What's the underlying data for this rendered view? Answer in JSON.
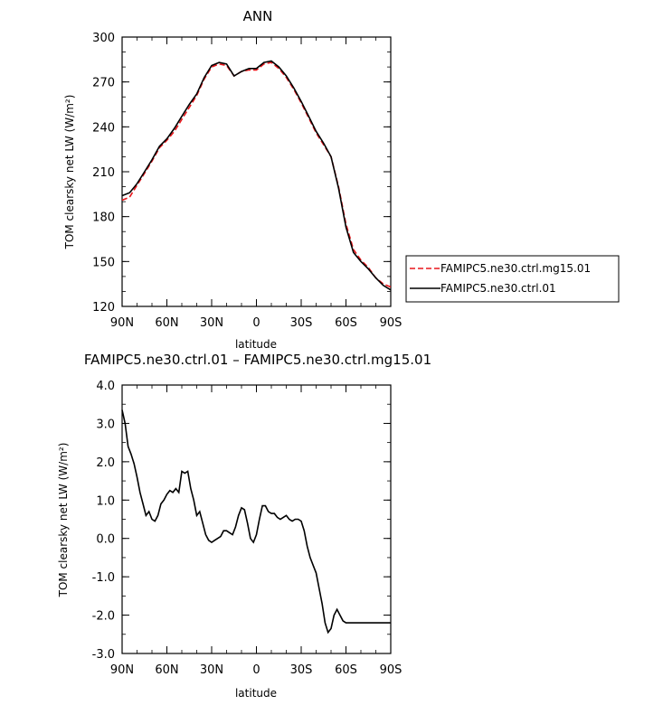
{
  "chart_data": [
    {
      "type": "line",
      "title": "ANN",
      "xlabel": "latitude",
      "ylabel": "TOM clearsky net LW (W/m²)",
      "ylim": [
        120,
        300
      ],
      "yticks": [
        "120",
        "150",
        "180",
        "210",
        "240",
        "270",
        "300"
      ],
      "xticks": [
        "90N",
        "60N",
        "30N",
        "0",
        "30S",
        "60S",
        "90S"
      ],
      "xlim": [
        90,
        -90
      ],
      "x": [
        90,
        85,
        80,
        75,
        70,
        65,
        60,
        55,
        50,
        45,
        40,
        35,
        30,
        25,
        20,
        15,
        10,
        5,
        0,
        -5,
        -10,
        -15,
        -20,
        -25,
        -30,
        -35,
        -40,
        -45,
        -50,
        -55,
        -60,
        -65,
        -70,
        -75,
        -80,
        -85,
        -90
      ],
      "series": [
        {
          "name": "FAMIPC5.ne30.ctrl.mg15.01",
          "color": "#e8161b",
          "dash": "dashed",
          "values": [
            191,
            193,
            201,
            209,
            217,
            226,
            231,
            237,
            245,
            253,
            261,
            272,
            280,
            282,
            281,
            274,
            277,
            278,
            278,
            282,
            283,
            279,
            273,
            265,
            256,
            246,
            236,
            228,
            220,
            200,
            175,
            158,
            151,
            146,
            139,
            135,
            133
          ]
        },
        {
          "name": "FAMIPC5.ne30.ctrl.01",
          "color": "#000000",
          "dash": "solid",
          "values": [
            194,
            196,
            202,
            210,
            218,
            227,
            232,
            239,
            247,
            255,
            262,
            273,
            281,
            283,
            282,
            274,
            277,
            279,
            279,
            283,
            284,
            280,
            274,
            266,
            257,
            247,
            237,
            229,
            220,
            199,
            173,
            156,
            150,
            145,
            139,
            134,
            131
          ]
        }
      ],
      "legend": "right"
    },
    {
      "type": "line",
      "title": "FAMIPC5.ne30.ctrl.01 – FAMIPC5.ne30.ctrl.mg15.01",
      "xlabel": "latitude",
      "ylabel": "TOM clearsky net LW (W/m²)",
      "ylim": [
        -3.0,
        4.0
      ],
      "yticks": [
        "-3.0",
        "-2.0",
        "-1.0",
        "0.0",
        "1.0",
        "2.0",
        "3.0",
        "4.0"
      ],
      "xticks": [
        "90N",
        "60N",
        "30N",
        "0",
        "30S",
        "60S",
        "90S"
      ],
      "xlim": [
        90,
        -90
      ],
      "series": [
        {
          "color": "#000000",
          "x": [
            90,
            88,
            86,
            84,
            82,
            80,
            78,
            76,
            74,
            72,
            70,
            68,
            66,
            64,
            62,
            60,
            58,
            56,
            54,
            52,
            50,
            48,
            46,
            44,
            42,
            40,
            38,
            36,
            34,
            32,
            30,
            28,
            26,
            24,
            22,
            20,
            18,
            16,
            14,
            12,
            10,
            8,
            6,
            4,
            2,
            0,
            -2,
            -4,
            -6,
            -8,
            -10,
            -12,
            -14,
            -16,
            -18,
            -20,
            -22,
            -24,
            -26,
            -28,
            -30,
            -32,
            -34,
            -36,
            -38,
            -40,
            -42,
            -44,
            -46,
            -48,
            -50,
            -52,
            -54,
            -56,
            -58,
            -60,
            -62,
            -64,
            -66,
            -68,
            -70,
            -72,
            -74,
            -76,
            -78,
            -80,
            -82,
            -84,
            -86,
            -88,
            -90
          ],
          "values": [
            3.35,
            3.0,
            2.4,
            2.2,
            1.95,
            1.6,
            1.2,
            0.9,
            0.6,
            0.7,
            0.5,
            0.45,
            0.6,
            0.9,
            1.0,
            1.15,
            1.25,
            1.2,
            1.3,
            1.2,
            1.75,
            1.7,
            1.75,
            1.3,
            1.0,
            0.6,
            0.7,
            0.4,
            0.1,
            -0.05,
            -0.1,
            -0.05,
            0.0,
            0.05,
            0.2,
            0.2,
            0.15,
            0.1,
            0.3,
            0.6,
            0.8,
            0.75,
            0.4,
            0.0,
            -0.1,
            0.1,
            0.5,
            0.85,
            0.85,
            0.7,
            0.65,
            0.65,
            0.55,
            0.5,
            0.55,
            0.6,
            0.5,
            0.45,
            0.5,
            0.5,
            0.45,
            0.2,
            -0.2,
            -0.5,
            -0.7,
            -0.9,
            -1.3,
            -1.7,
            -2.2,
            -2.45,
            -2.35,
            -2.0,
            -1.85,
            -2.0,
            -2.15,
            -2.2,
            -2.2,
            -2.2,
            -2.2,
            -2.2,
            -2.2,
            -2.2,
            -2.2,
            -2.2,
            -2.2,
            -2.2,
            -2.2,
            -2.2,
            -2.2,
            -2.2,
            -2.2
          ]
        }
      ]
    }
  ]
}
